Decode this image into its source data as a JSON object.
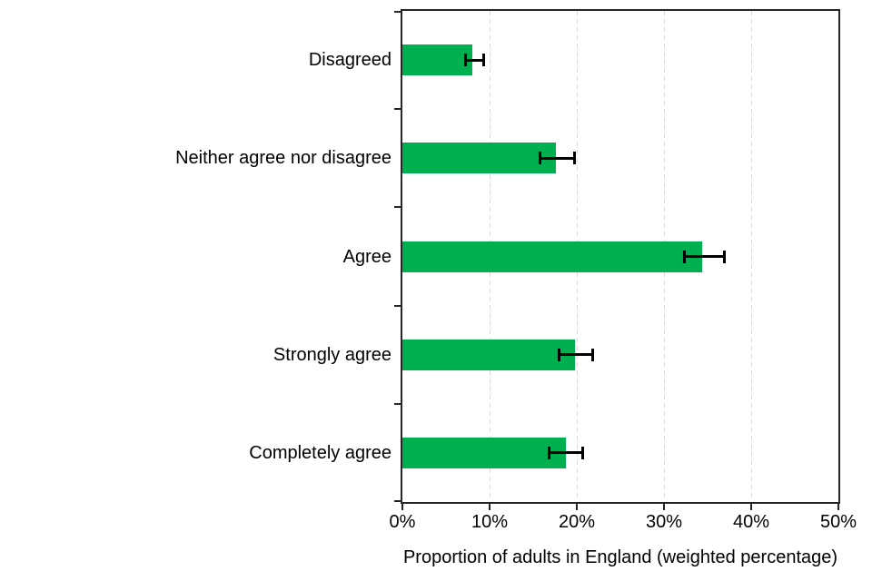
{
  "chart_data": {
    "type": "bar",
    "orientation": "horizontal",
    "xlabel": "Proportion of adults in England (weighted percentage)",
    "categories": [
      "Disagreed",
      "Neither agree nor disagree",
      "Agree",
      "Strongly agree",
      "Completely agree"
    ],
    "values": [
      8,
      17.6,
      34.4,
      19.8,
      18.8
    ],
    "error_bars": {
      "low": [
        7.2,
        15.8,
        32.3,
        18.0,
        16.8
      ],
      "high": [
        9.3,
        19.7,
        36.9,
        21.8,
        20.7
      ]
    },
    "x_ticks": {
      "values": [
        0,
        10,
        20,
        30,
        40,
        50
      ],
      "labels": [
        "0%",
        "10%",
        "20%",
        "30%",
        "40%",
        "50%"
      ]
    },
    "xlim": [
      0,
      50
    ],
    "grid": {
      "vertical": true,
      "style": "dashed",
      "color": "#d9d9d9"
    },
    "legend": "none",
    "colors": {
      "bar": "#00b050",
      "error": "#000000",
      "axis": "#262626",
      "text": "#000000",
      "background": "#ffffff"
    }
  }
}
